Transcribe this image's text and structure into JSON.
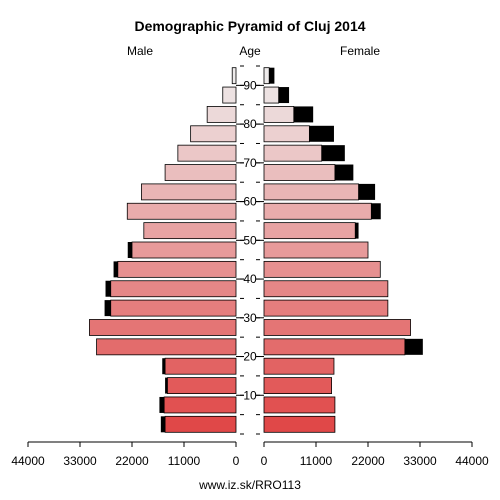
{
  "chart_data": {
    "type": "population-pyramid",
    "title": "Demographic Pyramid of Cluj 2014",
    "male_label": "Male",
    "age_label": "Age",
    "female_label": "Female",
    "footer": "www.iz.sk/RRO113",
    "x_ticks_male": [
      "44000",
      "33000",
      "22000",
      "11000",
      "0"
    ],
    "x_ticks_female": [
      "0",
      "11000",
      "22000",
      "33000",
      "44000"
    ],
    "age_ticks": [
      "10",
      "20",
      "30",
      "40",
      "50",
      "60",
      "70",
      "80",
      "90"
    ],
    "xlim": [
      0,
      44000
    ],
    "age_groups": [
      "0-4",
      "5-9",
      "10-14",
      "15-19",
      "20-24",
      "25-29",
      "30-34",
      "35-39",
      "40-44",
      "45-49",
      "50-54",
      "55-59",
      "60-64",
      "65-69",
      "70-74",
      "75-79",
      "80-84",
      "85-89",
      "90+"
    ],
    "male": [
      15000,
      15200,
      14500,
      15000,
      29500,
      31000,
      26500,
      26500,
      25000,
      22000,
      19500,
      23000,
      20000,
      15000,
      12300,
      9600,
      6100,
      2800,
      800
    ],
    "female": [
      15000,
      15000,
      14300,
      14800,
      29800,
      31000,
      26200,
      26200,
      24600,
      22000,
      19300,
      22700,
      20000,
      15000,
      12200,
      9600,
      6300,
      3100,
      1100
    ],
    "male_excess": [
      900,
      1000,
      500,
      600,
      0,
      0,
      1300,
      1100,
      900,
      900,
      0,
      0,
      0,
      0,
      0,
      0,
      0,
      0,
      0
    ],
    "female_excess": [
      0,
      0,
      0,
      0,
      3800,
      0,
      0,
      0,
      0,
      0,
      700,
      2000,
      3500,
      3900,
      4900,
      5200,
      4100,
      2200,
      1100
    ]
  }
}
